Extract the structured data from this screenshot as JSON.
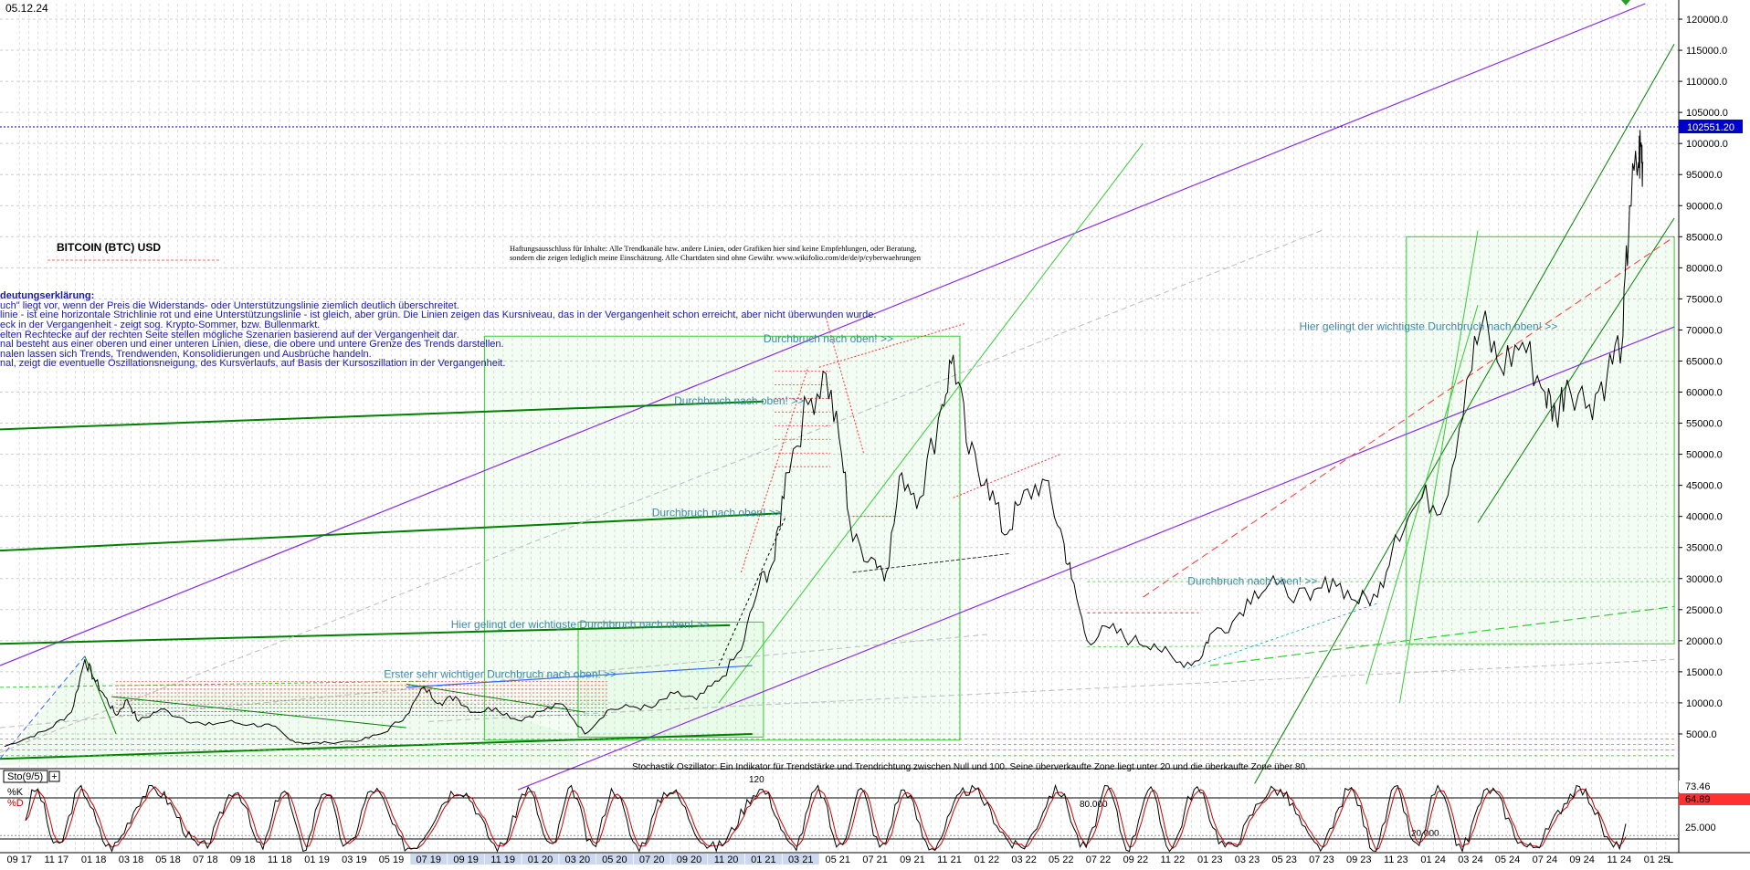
{
  "chart_data": {
    "type": "line",
    "date_label": "05.12.24",
    "title": "BITCOIN (BTC) USD",
    "disclaimer_line1": "Haftungsausschluss für Inhalte: Alle Trendkanäle bzw. andere Linien, oder Grafiken hier sind keine Empfehlungen, oder Beratung,",
    "disclaimer_line2": "sondern die zeigen lediglich meine Einschätzung. Alle Chartdaten sind ohne Gewähr. www.wikifolio.com/de/de/p/cyberwaehrungen",
    "explanation": [
      "deutungserklärung:",
      "uch\" liegt vor, wenn der Preis die Widerstands- oder Unterstützungslinie ziemlich deutlich überschreitet.",
      "linie - ist eine horizontale Strichlinie rot und eine Unterstützungslinie - ist gleich, aber grün. Die Linien zeigen das Kursniveau, das in der Vergangenheit schon erreicht, aber nicht überwunden wurde.",
      "eck in der Vergangenheit - zeigt sog. Krypto-Sommer, bzw. Bullenmarkt.",
      "elten Rechtecke auf der rechten Seite stellen mögliche Szenarien basierend auf der Vergangenheit dar.",
      "nal besteht aus einer oberen und einer unteren Linien, diese, die obere und untere Grenze des Trends darstellen.",
      "nalen lassen sich Trends, Trendwenden, Konsolidierungen und Ausbrüche handeln.",
      "nal, zeigt die eventuelle Oszillationsneigung, des Kursverlaufs, auf Basis der Kursoszillation in der Vergangenheit."
    ],
    "annotations": [
      {
        "text": "Durchbruch nach oben! >>",
        "date": "2021.0",
        "price": 68000
      },
      {
        "text": "Durchbruch nach oben! >>",
        "date": "2020.6",
        "price": 58000
      },
      {
        "text": "Durchbruch nach oben! >>",
        "date": "2020.5",
        "price": 40000
      },
      {
        "text": "Hier gelingt der wichtigste Durchbruch nach oben! >>",
        "date": "2019.6",
        "price": 22000
      },
      {
        "text": "Erster sehr wichtiger Durchbruch nach oben! >>",
        "date": "2019.3",
        "price": 14000
      },
      {
        "text": "Durchbruch nach oben! >>",
        "date": "2022.9",
        "price": 29000
      },
      {
        "text": "Hier gelingt der wichtigste Durchbruch nach oben! >>",
        "date": "2023.4",
        "price": 70000
      }
    ],
    "osc_footer_text": "Stochastik Oszillator: Ein Indikator für Trendstärke und Trendrichtung zwischen Null und 100. Seine überverkaufte Zone liegt unter 20 und die überkaufte Zone über 80.",
    "y_ticks": [
      "120000.0",
      "115000.0",
      "110000.0",
      "105000.0",
      "100000.0",
      "95000.0",
      "90000.0",
      "85000.0",
      "80000.0",
      "75000.0",
      "70000.0",
      "65000.0",
      "60000.0",
      "55000.0",
      "50000.0",
      "45000.0",
      "40000.0",
      "35000.0",
      "30000.0",
      "25000.0",
      "20000.0",
      "15000.0",
      "10000.0",
      "5000.0"
    ],
    "ylim": [
      0,
      122500
    ],
    "current_price_label": "102551.20",
    "current_price": 102551.2,
    "x_ticks": [
      "09 17",
      "11 17",
      "01 18",
      "03 18",
      "05 18",
      "07 18",
      "09 18",
      "11 18",
      "01 19",
      "03 19",
      "05 19",
      "07 19",
      "09 19",
      "11 19",
      "01 20",
      "03 20",
      "05 20",
      "07 20",
      "09 20",
      "11 20",
      "01 21",
      "03 21",
      "05 21",
      "07 21",
      "09 21",
      "11 21",
      "01 22",
      "03 22",
      "05 22",
      "07 22",
      "09 22",
      "11 22",
      "01 23",
      "03 23",
      "05 23",
      "07 23",
      "09 23",
      "11 23",
      "01 24",
      "03 24",
      "05 24",
      "07 24",
      "09 24",
      "11 24",
      "01 25"
    ],
    "x_tick_years": [
      2017.667,
      2017.833,
      2018.0,
      2018.167,
      2018.333,
      2018.5,
      2018.667,
      2018.833,
      2019.0,
      2019.167,
      2019.333,
      2019.5,
      2019.667,
      2019.833,
      2020.0,
      2020.167,
      2020.333,
      2020.5,
      2020.667,
      2020.833,
      2021.0,
      2021.167,
      2021.333,
      2021.5,
      2021.667,
      2021.833,
      2022.0,
      2022.167,
      2022.333,
      2022.5,
      2022.667,
      2022.833,
      2023.0,
      2023.167,
      2023.333,
      2023.5,
      2023.667,
      2023.833,
      2024.0,
      2024.167,
      2024.333,
      2024.5,
      2024.667,
      2024.833,
      2025.0
    ],
    "x_axis_end_label": "L",
    "xlim": [
      2017.58,
      2025.1
    ],
    "price_series": {
      "name": "BTC USD",
      "points": [
        [
          2017.6,
          3000
        ],
        [
          2017.7,
          4300
        ],
        [
          2017.8,
          5800
        ],
        [
          2017.9,
          8500
        ],
        [
          2017.96,
          17000
        ],
        [
          2018.0,
          14000
        ],
        [
          2018.05,
          11000
        ],
        [
          2018.1,
          8000
        ],
        [
          2018.15,
          10500
        ],
        [
          2018.2,
          7000
        ],
        [
          2018.3,
          9000
        ],
        [
          2018.4,
          7500
        ],
        [
          2018.5,
          6400
        ],
        [
          2018.6,
          7000
        ],
        [
          2018.7,
          6500
        ],
        [
          2018.8,
          6300
        ],
        [
          2018.88,
          4000
        ],
        [
          2018.95,
          3500
        ],
        [
          2019.05,
          3600
        ],
        [
          2019.2,
          4000
        ],
        [
          2019.3,
          5200
        ],
        [
          2019.4,
          8000
        ],
        [
          2019.48,
          12500
        ],
        [
          2019.55,
          10000
        ],
        [
          2019.62,
          11000
        ],
        [
          2019.7,
          8500
        ],
        [
          2019.8,
          9200
        ],
        [
          2019.9,
          7200
        ],
        [
          2020.0,
          8600
        ],
        [
          2020.1,
          9800
        ],
        [
          2020.2,
          5000
        ],
        [
          2020.3,
          8800
        ],
        [
          2020.4,
          9400
        ],
        [
          2020.5,
          9200
        ],
        [
          2020.6,
          11500
        ],
        [
          2020.7,
          10500
        ],
        [
          2020.8,
          13500
        ],
        [
          2020.9,
          18500
        ],
        [
          2020.98,
          29000
        ],
        [
          2021.05,
          33000
        ],
        [
          2021.1,
          47000
        ],
        [
          2021.2,
          58000
        ],
        [
          2021.28,
          63000
        ],
        [
          2021.35,
          50000
        ],
        [
          2021.4,
          36000
        ],
        [
          2021.5,
          33000
        ],
        [
          2021.55,
          31000
        ],
        [
          2021.62,
          47000
        ],
        [
          2021.7,
          43000
        ],
        [
          2021.8,
          58000
        ],
        [
          2021.85,
          66000
        ],
        [
          2021.92,
          50000
        ],
        [
          2022.0,
          46000
        ],
        [
          2022.08,
          37000
        ],
        [
          2022.15,
          42000
        ],
        [
          2022.25,
          46000
        ],
        [
          2022.33,
          38000
        ],
        [
          2022.38,
          30000
        ],
        [
          2022.45,
          20000
        ],
        [
          2022.55,
          22000
        ],
        [
          2022.65,
          20000
        ],
        [
          2022.75,
          19500
        ],
        [
          2022.85,
          16500
        ],
        [
          2022.95,
          16800
        ],
        [
          2023.0,
          21000
        ],
        [
          2023.1,
          23000
        ],
        [
          2023.2,
          28000
        ],
        [
          2023.3,
          29000
        ],
        [
          2023.45,
          26500
        ],
        [
          2023.55,
          30000
        ],
        [
          2023.65,
          26500
        ],
        [
          2023.75,
          27000
        ],
        [
          2023.83,
          37000
        ],
        [
          2023.95,
          43000
        ],
        [
          2024.05,
          42000
        ],
        [
          2024.15,
          62000
        ],
        [
          2024.22,
          71000
        ],
        [
          2024.3,
          64000
        ],
        [
          2024.4,
          68000
        ],
        [
          2024.5,
          60000
        ],
        [
          2024.55,
          56000
        ],
        [
          2024.6,
          62000
        ],
        [
          2024.7,
          58000
        ],
        [
          2024.78,
          63000
        ],
        [
          2024.85,
          69000
        ],
        [
          2024.88,
          90000
        ],
        [
          2024.92,
          97000
        ],
        [
          2024.93,
          99500
        ],
        [
          2024.94,
          97000
        ]
      ]
    },
    "oscillator": {
      "name": "Sto(9/5)",
      "k_label": "%K",
      "d_label": "%D",
      "k_value": "73.46",
      "d_value": "64.89",
      "levels": [
        {
          "value": 80,
          "label": "80.000"
        },
        {
          "value": 20,
          "label": "20.000"
        }
      ],
      "y_ticks": [
        "25.000"
      ],
      "label_120": "120"
    },
    "colors": {
      "trend_purple": "#8a2be2",
      "trend_green": "#008000",
      "bright_green": "#33cc33",
      "red_dashed": "#ff3333",
      "annotation": "#3d8aa6",
      "explanation_text": "#1a1aa6",
      "current_price_bg": "#0000cc",
      "d_value_bg": "#ff3030",
      "price_line": "#000000",
      "osc_k": "#000000",
      "osc_d": "#cc0000"
    }
  }
}
